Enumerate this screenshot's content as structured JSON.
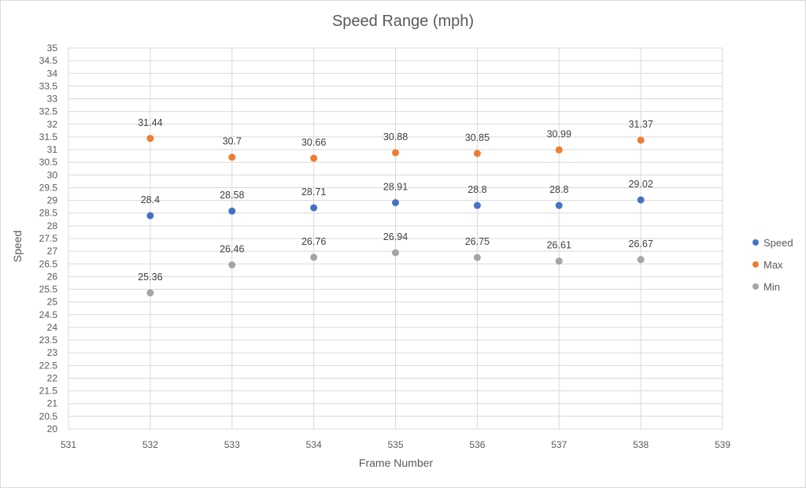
{
  "chart_data": {
    "type": "scatter",
    "title": "Speed Range (mph)",
    "xlabel": "Frame Number",
    "ylabel": "Speed",
    "xlim": [
      531,
      539
    ],
    "ylim": [
      20,
      35
    ],
    "x_ticks": [
      "531",
      "532",
      "533",
      "534",
      "535",
      "536",
      "537",
      "538",
      "539"
    ],
    "y_ticks": [
      "20",
      "20.5",
      "21",
      "21.5",
      "22",
      "22.5",
      "23",
      "23.5",
      "24",
      "24.5",
      "25",
      "25.5",
      "26",
      "26.5",
      "27",
      "27.5",
      "28",
      "28.5",
      "29",
      "29.5",
      "30",
      "30.5",
      "31",
      "31.5",
      "32",
      "32.5",
      "33",
      "33.5",
      "34",
      "34.5",
      "35"
    ],
    "grid": true,
    "legend_position": "right",
    "x": [
      532,
      533,
      534,
      535,
      536,
      537,
      538
    ],
    "series": [
      {
        "name": "Speed",
        "color": "#4472c4",
        "values": [
          28.4,
          28.58,
          28.71,
          28.91,
          28.8,
          28.8,
          29.02
        ],
        "labels": [
          "28.4",
          "28.58",
          "28.71",
          "28.91",
          "28.8",
          "28.8",
          "29.02"
        ]
      },
      {
        "name": "Max",
        "color": "#ed7d31",
        "values": [
          31.44,
          30.7,
          30.66,
          30.88,
          30.85,
          30.99,
          31.37
        ],
        "labels": [
          "31.44",
          "30.7",
          "30.66",
          "30.88",
          "30.85",
          "30.99",
          "31.37"
        ]
      },
      {
        "name": "Min",
        "color": "#a5a5a5",
        "values": [
          25.36,
          26.46,
          26.76,
          26.94,
          26.75,
          26.61,
          26.67
        ],
        "labels": [
          "25.36",
          "26.46",
          "26.76",
          "26.94",
          "26.75",
          "26.61",
          "26.67"
        ]
      }
    ]
  }
}
